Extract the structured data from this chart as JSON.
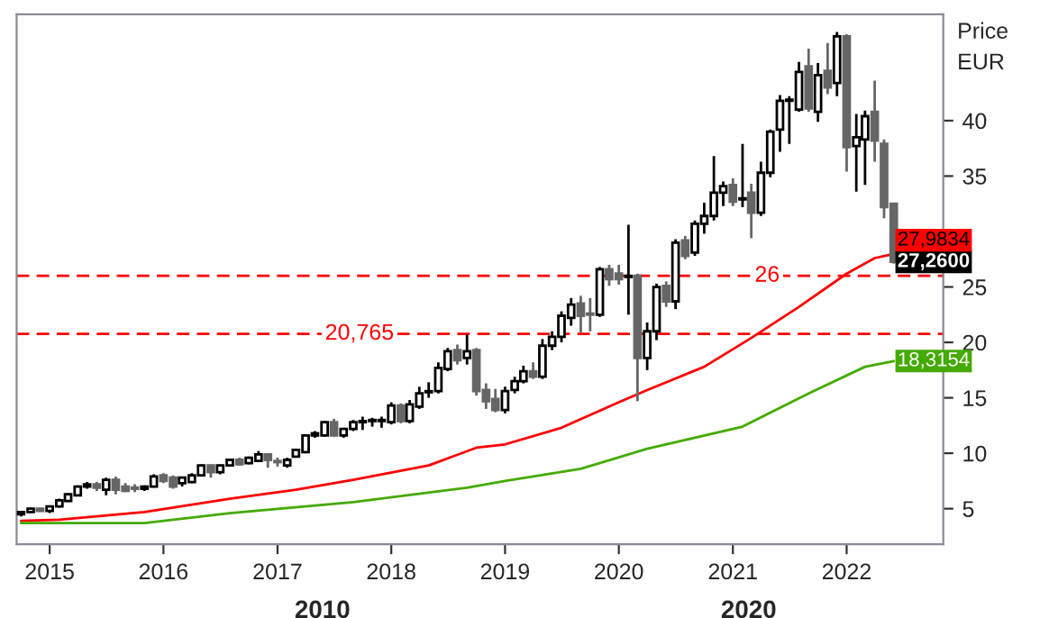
{
  "chart_data": {
    "type": "candlestick",
    "ylabel": "Price\nEUR",
    "annotations": [
      "2010",
      "2020"
    ],
    "xlim": [
      "2014-09-17",
      "2022-11-07"
    ],
    "xticks": [
      "2015",
      "2016",
      "2017",
      "2018",
      "2019",
      "2020",
      "2021",
      "2022"
    ],
    "ylim": [
      1.8,
      49.6
    ],
    "yticks": [
      5,
      10,
      15,
      20,
      25,
      35,
      40
    ],
    "grid": false,
    "legend": false,
    "x": [
      "2014-10",
      "2014-11",
      "2014-12",
      "2015-01",
      "2015-02",
      "2015-03",
      "2015-04",
      "2015-05",
      "2015-06",
      "2015-07",
      "2015-08",
      "2015-09",
      "2015-10",
      "2015-11",
      "2015-12",
      "2016-01",
      "2016-02",
      "2016-03",
      "2016-04",
      "2016-05",
      "2016-06",
      "2016-07",
      "2016-08",
      "2016-09",
      "2016-10",
      "2016-11",
      "2016-12",
      "2017-01",
      "2017-02",
      "2017-03",
      "2017-04",
      "2017-05",
      "2017-06",
      "2017-07",
      "2017-08",
      "2017-09",
      "2017-10",
      "2017-11",
      "2017-12",
      "2018-01",
      "2018-02",
      "2018-03",
      "2018-04",
      "2018-05",
      "2018-06",
      "2018-07",
      "2018-08",
      "2018-09",
      "2018-10",
      "2018-11",
      "2018-12",
      "2019-01",
      "2019-02",
      "2019-03",
      "2019-04",
      "2019-05",
      "2019-06",
      "2019-07",
      "2019-08",
      "2019-09",
      "2019-10",
      "2019-11",
      "2019-12",
      "2020-01",
      "2020-02",
      "2020-03",
      "2020-04",
      "2020-05",
      "2020-06",
      "2020-07",
      "2020-08",
      "2020-09",
      "2020-10",
      "2020-11",
      "2020-12",
      "2021-01",
      "2021-02",
      "2021-03",
      "2021-04",
      "2021-05",
      "2021-06",
      "2021-07",
      "2021-08",
      "2021-09",
      "2021-10",
      "2021-11",
      "2021-12",
      "2022-01",
      "2022-02",
      "2022-03",
      "2022-04",
      "2022-05",
      "2022-06"
    ],
    "ohlc": [
      [
        4.5,
        4.8,
        4.3,
        4.7
      ],
      [
        4.7,
        5.1,
        4.6,
        5.0
      ],
      [
        5.0,
        5.1,
        4.7,
        4.8
      ],
      [
        4.8,
        5.3,
        4.6,
        5.2
      ],
      [
        5.2,
        5.9,
        5.1,
        5.75
      ],
      [
        5.7,
        6.4,
        5.6,
        6.3
      ],
      [
        6.2,
        7.1,
        6.1,
        7.0
      ],
      [
        7.0,
        7.4,
        6.8,
        7.2
      ],
      [
        7.2,
        7.4,
        6.6,
        6.9
      ],
      [
        6.7,
        7.8,
        6.2,
        7.6
      ],
      [
        7.6,
        7.9,
        6.3,
        6.7
      ],
      [
        7.0,
        7.3,
        6.5,
        6.6
      ],
      [
        6.9,
        7.2,
        6.5,
        6.8
      ],
      [
        6.8,
        7.1,
        6.6,
        7.0
      ],
      [
        7.0,
        8.1,
        6.9,
        7.9
      ],
      [
        8.0,
        8.2,
        7.3,
        7.5
      ],
      [
        7.8,
        8.0,
        6.8,
        7.0
      ],
      [
        7.3,
        7.9,
        7.0,
        7.8
      ],
      [
        7.4,
        8.2,
        7.3,
        8.0
      ],
      [
        8.0,
        9.0,
        7.9,
        8.9
      ],
      [
        8.9,
        9.0,
        7.8,
        8.3
      ],
      [
        8.3,
        9.0,
        8.1,
        8.9
      ],
      [
        8.9,
        9.5,
        8.8,
        9.4
      ],
      [
        9.4,
        9.6,
        8.9,
        9.0
      ],
      [
        9.1,
        9.7,
        9.0,
        9.6
      ],
      [
        9.3,
        10.2,
        9.2,
        9.9
      ],
      [
        9.9,
        10.0,
        8.7,
        9.4
      ],
      [
        9.3,
        9.6,
        8.8,
        9.2
      ],
      [
        8.9,
        9.6,
        8.7,
        9.4
      ],
      [
        9.7,
        10.4,
        9.6,
        10.3
      ],
      [
        10.1,
        11.7,
        10.0,
        11.6
      ],
      [
        11.6,
        12.0,
        11.4,
        11.8
      ],
      [
        11.6,
        12.9,
        11.5,
        12.8
      ],
      [
        12.8,
        13.1,
        11.5,
        11.6
      ],
      [
        11.6,
        12.3,
        11.4,
        12.2
      ],
      [
        12.2,
        13.0,
        12.0,
        12.8
      ],
      [
        12.8,
        13.3,
        12.1,
        12.9
      ],
      [
        12.9,
        13.2,
        12.4,
        13.0
      ],
      [
        12.9,
        13.3,
        12.3,
        13.0
      ],
      [
        12.8,
        14.6,
        12.6,
        14.3
      ],
      [
        14.3,
        14.5,
        12.7,
        12.9
      ],
      [
        12.9,
        14.8,
        12.7,
        14.4
      ],
      [
        14.2,
        16.0,
        14.0,
        15.4
      ],
      [
        15.5,
        16.4,
        15.0,
        15.6
      ],
      [
        15.6,
        18.2,
        15.4,
        17.7
      ],
      [
        17.6,
        19.5,
        17.4,
        19.2
      ],
      [
        19.3,
        19.8,
        18.0,
        18.4
      ],
      [
        18.6,
        20.7,
        18.0,
        19.2
      ],
      [
        19.3,
        19.5,
        15.2,
        15.6
      ],
      [
        15.7,
        16.3,
        14.0,
        14.7
      ],
      [
        14.9,
        15.8,
        13.7,
        13.9
      ],
      [
        13.9,
        16.0,
        13.6,
        15.6
      ],
      [
        15.7,
        16.9,
        15.4,
        16.5
      ],
      [
        16.5,
        17.9,
        16.3,
        17.4
      ],
      [
        17.4,
        18.2,
        16.7,
        16.9
      ],
      [
        16.9,
        20.3,
        16.7,
        19.7
      ],
      [
        19.7,
        21.0,
        19.3,
        20.5
      ],
      [
        20.5,
        22.8,
        20.0,
        22.4
      ],
      [
        22.2,
        24.0,
        21.5,
        23.4
      ],
      [
        23.5,
        24.2,
        20.9,
        22.4
      ],
      [
        22.6,
        24.0,
        21.0,
        22.5
      ],
      [
        22.5,
        26.8,
        22.3,
        26.6
      ],
      [
        26.6,
        27.0,
        25.1,
        25.7
      ],
      [
        26.2,
        27.0,
        25.2,
        25.7
      ],
      [
        25.9,
        30.6,
        22.5,
        26.0
      ],
      [
        26.0,
        26.2,
        14.7,
        18.6
      ],
      [
        18.6,
        21.8,
        17.5,
        21.0
      ],
      [
        21.0,
        25.3,
        20.2,
        25.0
      ],
      [
        25.1,
        25.5,
        23.2,
        23.7
      ],
      [
        23.7,
        29.3,
        23.0,
        29.0
      ],
      [
        29.2,
        29.6,
        27.5,
        27.8
      ],
      [
        28.1,
        31.0,
        27.8,
        30.7
      ],
      [
        30.7,
        32.6,
        29.8,
        31.4
      ],
      [
        31.4,
        36.8,
        31.0,
        33.5
      ],
      [
        33.5,
        34.5,
        32.3,
        34.1
      ],
      [
        34.2,
        34.8,
        32.3,
        32.7
      ],
      [
        32.9,
        37.9,
        32.2,
        33.0
      ],
      [
        33.5,
        34.3,
        29.4,
        31.7
      ],
      [
        31.7,
        36.3,
        31.4,
        35.3
      ],
      [
        35.3,
        39.2,
        34.9,
        39.0
      ],
      [
        39.2,
        42.3,
        37.2,
        41.8
      ],
      [
        41.8,
        42.2,
        37.9,
        41.9
      ],
      [
        41.0,
        45.3,
        40.8,
        44.4
      ],
      [
        44.9,
        46.5,
        40.8,
        41.1
      ],
      [
        40.8,
        45.2,
        39.9,
        44.1
      ],
      [
        44.5,
        47.0,
        42.4,
        43.0
      ],
      [
        43.4,
        48.0,
        42.2,
        47.6
      ],
      [
        47.6,
        47.8,
        35.4,
        37.6
      ],
      [
        37.7,
        40.6,
        33.6,
        38.5
      ],
      [
        38.3,
        40.9,
        34.2,
        40.4
      ],
      [
        40.8,
        43.6,
        36.3,
        38.2
      ],
      [
        37.9,
        38.3,
        31.2,
        32.2
      ],
      [
        32.5,
        32.6,
        27.1,
        27.26
      ]
    ],
    "value_labels": [
      null,
      null,
      null,
      null,
      null,
      null,
      null,
      null,
      null,
      null,
      null,
      null,
      null,
      null,
      null,
      null,
      null,
      null,
      null,
      null,
      null,
      null,
      null,
      null,
      null,
      null,
      null,
      null,
      null,
      null,
      null,
      null,
      null,
      null,
      null,
      null,
      null,
      null,
      null,
      null,
      null,
      null,
      null,
      null,
      null,
      null,
      null,
      null,
      null,
      null,
      null,
      null,
      null,
      null,
      null,
      null,
      null,
      null,
      null,
      null,
      null,
      null,
      null,
      null,
      null,
      null,
      null,
      null,
      null,
      null,
      null,
      null,
      null,
      null,
      null,
      null,
      null,
      null,
      null,
      null,
      null,
      null,
      null,
      null,
      null,
      null,
      null,
      null,
      null,
      null,
      null,
      null,
      "27,2600"
    ],
    "series": [
      {
        "type": "line",
        "color": "#ff0000",
        "x": [
          "2014-10",
          "2015-02",
          "2015-11",
          "2016-08",
          "2017-03",
          "2017-09",
          "2018-05",
          "2018-10",
          "2019-01",
          "2019-07",
          "2020-01",
          "2020-04",
          "2020-10",
          "2021-03",
          "2021-08",
          "2022-01",
          "2022-04",
          "2022-06"
        ],
        "values": [
          3.9,
          4.0,
          4.7,
          5.9,
          6.7,
          7.6,
          8.9,
          10.5,
          10.8,
          12.3,
          14.6,
          15.7,
          17.8,
          20.4,
          23.2,
          26.2,
          27.6,
          27.9834
        ],
        "value_labels": [
          null,
          null,
          null,
          null,
          null,
          null,
          null,
          null,
          null,
          null,
          null,
          null,
          null,
          null,
          null,
          null,
          null,
          "27,9834"
        ]
      },
      {
        "type": "line",
        "color": "#44aa00",
        "x": [
          "2014-10",
          "2015-11",
          "2016-08",
          "2017-09",
          "2018-09",
          "2019-01",
          "2019-09",
          "2020-04",
          "2021-02",
          "2021-09",
          "2022-03",
          "2022-06"
        ],
        "values": [
          3.7,
          3.7,
          4.6,
          5.6,
          6.9,
          7.5,
          8.6,
          10.4,
          12.4,
          15.4,
          17.8,
          18.3154
        ],
        "value_labels": [
          null,
          null,
          null,
          null,
          null,
          null,
          null,
          null,
          null,
          null,
          null,
          "18,3154"
        ]
      }
    ],
    "ref_lines": [
      {
        "axis": "y",
        "value": 26,
        "label": "26",
        "color": "#ff0000",
        "line_style": "dashed"
      },
      {
        "axis": "y",
        "value": 20.765,
        "label": "20,765",
        "color": "#ff0000",
        "line_style": "dashed"
      }
    ]
  }
}
